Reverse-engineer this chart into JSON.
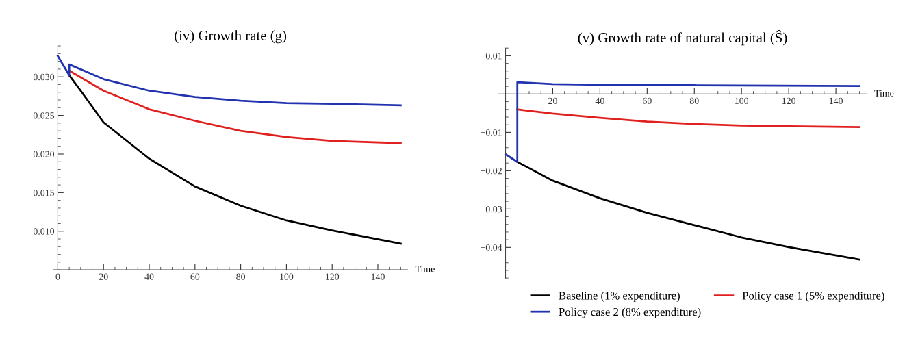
{
  "chart_data": [
    {
      "type": "line",
      "title": "(iv) Growth rate (g)",
      "xlabel": "Time",
      "xlim": [
        -2,
        153
      ],
      "ylim": [
        0.005,
        0.034
      ],
      "xticks": [
        0,
        20,
        40,
        60,
        80,
        100,
        120,
        140
      ],
      "yticks": [
        {
          "value": 0.01,
          "label": "0.010"
        },
        {
          "value": 0.015,
          "label": "0.015"
        },
        {
          "value": 0.02,
          "label": "0.020"
        },
        {
          "value": 0.025,
          "label": "0.025"
        },
        {
          "value": 0.03,
          "label": "0.030"
        }
      ],
      "grid": false,
      "legend": false,
      "series": [
        {
          "color": "#000000",
          "x": [
            5,
            10,
            20,
            40,
            60,
            80,
            100,
            120,
            150
          ],
          "values": [
            0.0302,
            0.0282,
            0.0241,
            0.0194,
            0.0158,
            0.0133,
            0.0114,
            0.0101,
            0.0084
          ]
        },
        {
          "color": "#e0201e",
          "x": [
            5,
            20,
            40,
            60,
            80,
            100,
            120,
            150
          ],
          "values": [
            0.0308,
            0.0282,
            0.0258,
            0.0243,
            0.023,
            0.0222,
            0.0217,
            0.0214
          ]
        },
        {
          "color": "#2233b0",
          "x": [
            0,
            5,
            5,
            20,
            40,
            60,
            80,
            100,
            120,
            150
          ],
          "values": [
            0.0327,
            0.0302,
            0.0316,
            0.0297,
            0.0282,
            0.0274,
            0.0269,
            0.0266,
            0.0265,
            0.0263
          ]
        }
      ]
    },
    {
      "type": "line",
      "title": "(v) Growth rate of natural capital (Ŝ)",
      "xlabel": "Time",
      "xlim": [
        -3,
        153
      ],
      "ylim": [
        -0.048,
        0.012
      ],
      "xticks": [
        20,
        40,
        60,
        80,
        100,
        120,
        140
      ],
      "yticks": [
        {
          "value": -0.04,
          "label": "−0.04"
        },
        {
          "value": -0.03,
          "label": "−0.03"
        },
        {
          "value": -0.02,
          "label": "−0.02"
        },
        {
          "value": -0.01,
          "label": "−0.01"
        },
        {
          "value": 0.01,
          "label": "0.01"
        }
      ],
      "grid": false,
      "legend": "bottom",
      "series": [
        {
          "name": "Baseline (1% expenditure)",
          "color": "#000000",
          "x": [
            5,
            20,
            40,
            60,
            80,
            100,
            120,
            150
          ],
          "values": [
            -0.0177,
            -0.0226,
            -0.0272,
            -0.031,
            -0.0342,
            -0.0374,
            -0.0399,
            -0.0432
          ]
        },
        {
          "name": "Policy case 1 (5% expenditure)",
          "color": "#e0201e",
          "x": [
            5,
            20,
            40,
            60,
            80,
            100,
            120,
            150
          ],
          "values": [
            -0.004,
            -0.0051,
            -0.0062,
            -0.0072,
            -0.0078,
            -0.0082,
            -0.0084,
            -0.0086
          ]
        },
        {
          "name": "Policy case 2 (8% expenditure)",
          "color": "#2233b0",
          "x": [
            0,
            5,
            5,
            20,
            40,
            80,
            150
          ],
          "values": [
            -0.0157,
            -0.0177,
            0.0031,
            0.0026,
            0.0024,
            0.0023,
            0.0021
          ]
        }
      ]
    }
  ]
}
